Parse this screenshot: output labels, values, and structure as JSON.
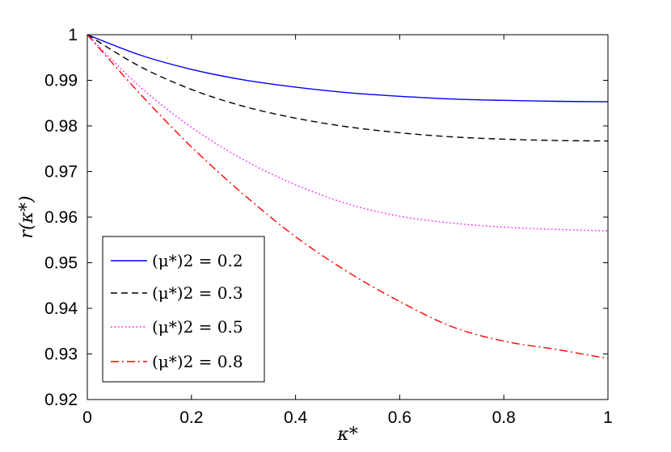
{
  "chart_data": {
    "type": "line",
    "xlabel": "κ*",
    "ylabel": "r(κ*)",
    "xlim": [
      0,
      1
    ],
    "ylim": [
      0.92,
      1.0
    ],
    "xticks": [
      "0",
      "0.2",
      "0.4",
      "0.6",
      "0.8",
      "1"
    ],
    "yticks": [
      "0.92",
      "0.93",
      "0.94",
      "0.95",
      "0.96",
      "0.97",
      "0.98",
      "0.99",
      "1"
    ],
    "grid": false,
    "legend_position": "bottom-left",
    "series": [
      {
        "name": "(μ*)2 = 0.2",
        "color": "#0000ff",
        "style": "solid",
        "x": [
          0,
          0.1,
          0.2,
          0.3,
          0.4,
          0.5,
          0.6,
          0.7,
          0.8,
          0.9,
          1.0
        ],
        "y": [
          1.0,
          0.9956,
          0.9924,
          0.9901,
          0.9885,
          0.9873,
          0.9865,
          0.9859,
          0.9856,
          0.9854,
          0.9853
        ]
      },
      {
        "name": "(μ*)2 = 0.3",
        "color": "#000000",
        "style": "dashed",
        "x": [
          0,
          0.1,
          0.2,
          0.3,
          0.4,
          0.5,
          0.6,
          0.7,
          0.8,
          0.9,
          1.0
        ],
        "y": [
          1.0,
          0.9931,
          0.988,
          0.9843,
          0.9817,
          0.9798,
          0.9785,
          0.9776,
          0.9771,
          0.9768,
          0.9767
        ]
      },
      {
        "name": "(μ*)2 = 0.5",
        "color": "#ff00ff",
        "style": "dotted",
        "x": [
          0,
          0.1,
          0.2,
          0.3,
          0.4,
          0.5,
          0.6,
          0.7,
          0.8,
          0.9,
          1.0
        ],
        "y": [
          1.0,
          0.9887,
          0.9797,
          0.9726,
          0.9671,
          0.9629,
          0.9602,
          0.9587,
          0.9578,
          0.9573,
          0.957
        ]
      },
      {
        "name": "(μ*)2 = 0.8",
        "color": "#ff0000",
        "style": "dashdot",
        "x": [
          0,
          0.1,
          0.2,
          0.3,
          0.4,
          0.5,
          0.6,
          0.7,
          0.8,
          0.9,
          1.0
        ],
        "y": [
          1.0,
          0.9872,
          0.9754,
          0.965,
          0.9557,
          0.948,
          0.9415,
          0.936,
          0.9328,
          0.931,
          0.929
        ]
      }
    ]
  }
}
